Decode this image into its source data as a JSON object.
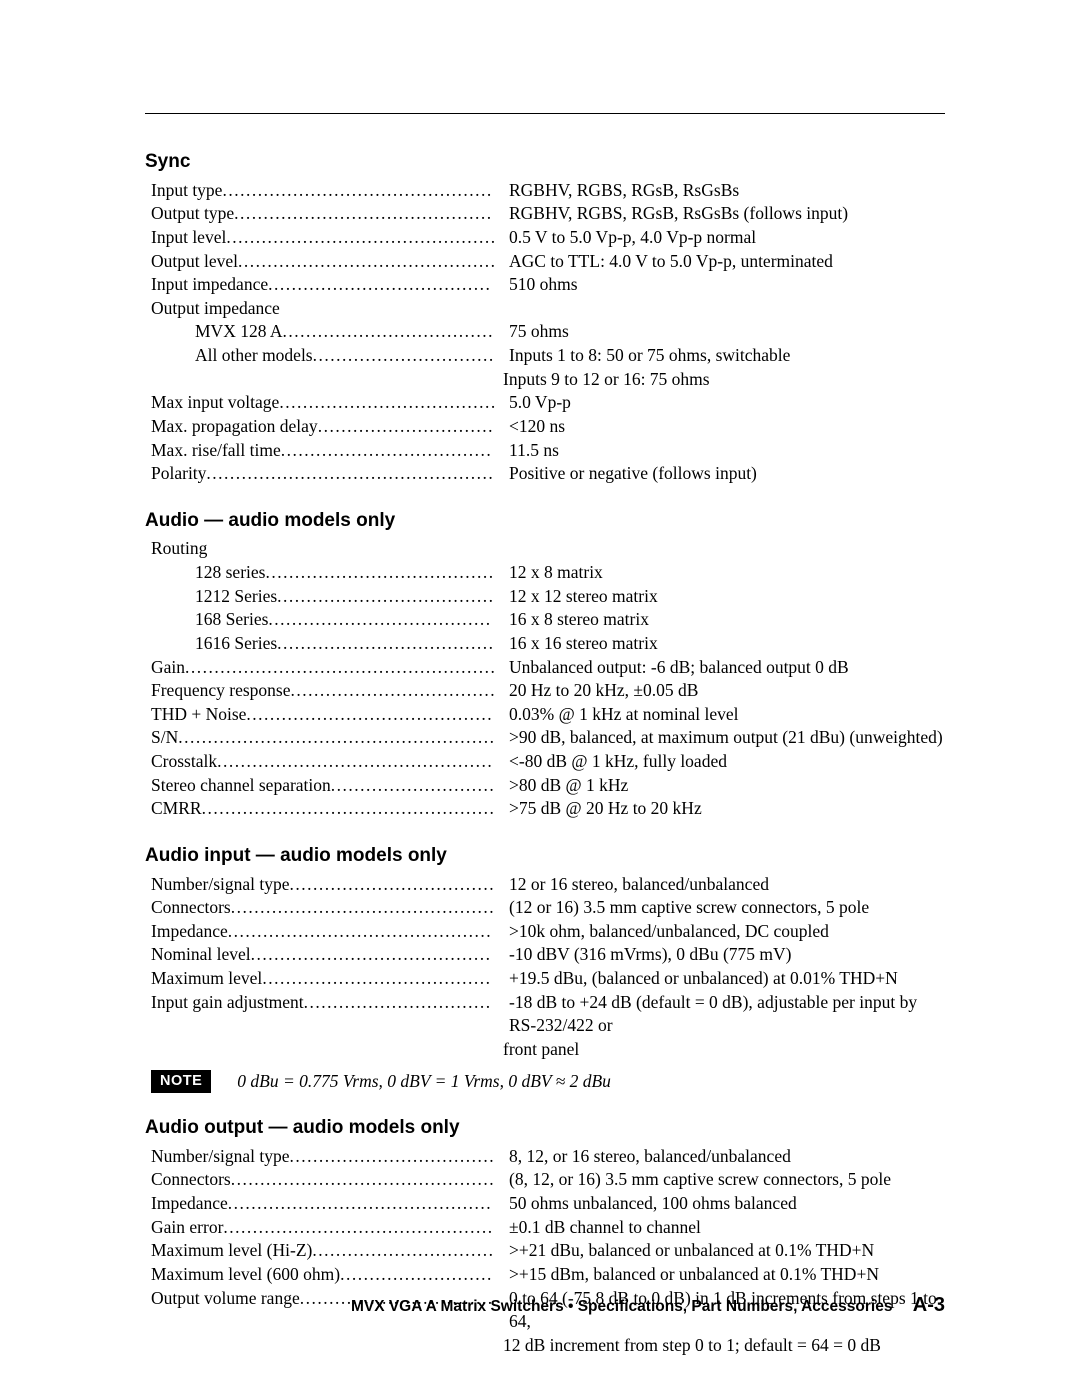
{
  "label_width_base": 352,
  "label_width_1": 308,
  "label_width_2": 268,
  "sections": [
    {
      "heading": "Sync",
      "first": true,
      "rows": [
        {
          "indent": 0,
          "label": "Input type",
          "dots": true,
          "value": "RGBHV, RGBS, RGsB, RsGsBs"
        },
        {
          "indent": 0,
          "label": "Output type",
          "dots": true,
          "value": "RGBHV, RGBS, RGsB, RsGsBs (follows input)"
        },
        {
          "indent": 0,
          "label": "Input level",
          "dots": true,
          "value": "0.5 V to 5.0 Vp-p, 4.0 Vp-p normal"
        },
        {
          "indent": 0,
          "label": "Output level",
          "dots": true,
          "value": "AGC to TTL: 4.0 V to 5.0 Vp-p, unterminated"
        },
        {
          "indent": 0,
          "label": "Input impedance",
          "dots": true,
          "value": "510 ohms"
        },
        {
          "indent": 0,
          "label": "Output impedance",
          "dots": false,
          "value": ""
        },
        {
          "indent": 1,
          "label": "MVX 128 A",
          "dots": true,
          "value": "75 ohms"
        },
        {
          "indent": 1,
          "label": "All other models",
          "dots": true,
          "value": "Inputs 1 to 8: 50 or 75 ohms, switchable"
        },
        {
          "continuation": true,
          "value": "Inputs 9 to 12 or 16: 75 ohms"
        },
        {
          "indent": 0,
          "label": "Max input voltage",
          "dots": true,
          "value": "5.0 Vp-p"
        },
        {
          "indent": 0,
          "label": "Max. propagation delay",
          "dots": true,
          "value": "<120 ns"
        },
        {
          "indent": 0,
          "label": "Max. rise/fall time",
          "dots": true,
          "value": "11.5 ns"
        },
        {
          "indent": 0,
          "label": "Polarity",
          "dots": true,
          "value": "Positive or negative (follows input)"
        }
      ]
    },
    {
      "heading": "Audio — audio models only",
      "rows": [
        {
          "indent": 0,
          "label": "Routing",
          "dots": false,
          "value": ""
        },
        {
          "indent": 1,
          "label": "128 series",
          "dots": true,
          "value": "12 x 8 matrix"
        },
        {
          "indent": 1,
          "label": "1212 Series",
          "dots": true,
          "value": "12 x 12 stereo matrix"
        },
        {
          "indent": 1,
          "label": "168 Series",
          "dots": true,
          "value": "16 x 8 stereo matrix"
        },
        {
          "indent": 1,
          "label": "1616 Series",
          "dots": true,
          "value": "16 x 16 stereo matrix"
        },
        {
          "indent": 0,
          "label": "Gain",
          "dots": true,
          "value": "Unbalanced output: -6 dB; balanced output 0 dB"
        },
        {
          "indent": 0,
          "label": "Frequency response",
          "dots": true,
          "value": "20 Hz to 20 kHz, ±0.05 dB"
        },
        {
          "indent": 0,
          "label": "THD + Noise",
          "dots": true,
          "value": "0.03% @ 1 kHz at nominal level"
        },
        {
          "indent": 0,
          "label": "S/N",
          "dots": true,
          "value": ">90 dB, balanced, at maximum output (21 dBu) (unweighted)"
        },
        {
          "indent": 0,
          "label": "Crosstalk",
          "dots": true,
          "value": "<-80 dB @ 1 kHz, fully loaded"
        },
        {
          "indent": 0,
          "label": "Stereo channel separation",
          "dots": true,
          "value": ">80 dB @ 1 kHz"
        },
        {
          "indent": 0,
          "label": "CMRR",
          "dots": true,
          "value": ">75 dB @  20 Hz to 20 kHz"
        }
      ]
    },
    {
      "heading": "Audio input — audio models only",
      "rows": [
        {
          "indent": 0,
          "label": "Number/signal type",
          "dots": true,
          "value": "12 or 16 stereo, balanced/unbalanced"
        },
        {
          "indent": 0,
          "label": "Connectors",
          "dots": true,
          "value": "(12 or 16) 3.5 mm captive screw connectors, 5 pole"
        },
        {
          "indent": 0,
          "label": "Impedance",
          "dots": true,
          "value": ">10k ohm, balanced/unbalanced, DC coupled"
        },
        {
          "indent": 0,
          "label": "Nominal level",
          "dots": true,
          "value": "-10 dBV (316 mVrms), 0 dBu (775 mV)"
        },
        {
          "indent": 0,
          "label": "Maximum level",
          "dots": true,
          "value": "+19.5 dBu, (balanced or unbalanced) at 0.01% THD+N"
        },
        {
          "indent": 0,
          "label": "Input gain adjustment",
          "dots": true,
          "value": "-18 dB to +24 dB (default = 0 dB), adjustable per input by RS-232/422 or"
        },
        {
          "continuation": true,
          "value": "front panel"
        }
      ],
      "note": "0 dBu = 0.775 Vrms, 0 dBV = 1 Vrms, 0 dBV ≈ 2 dBu"
    },
    {
      "heading": "Audio output — audio models only",
      "rows": [
        {
          "indent": 0,
          "label": "Number/signal type",
          "dots": true,
          "value": "8, 12, or 16 stereo, balanced/unbalanced"
        },
        {
          "indent": 0,
          "label": "Connectors",
          "dots": true,
          "value": "(8, 12, or 16) 3.5 mm captive screw connectors, 5 pole"
        },
        {
          "indent": 0,
          "label": "Impedance",
          "dots": true,
          "value": "50 ohms unbalanced, 100 ohms balanced"
        },
        {
          "indent": 0,
          "label": "Gain error",
          "dots": true,
          "value": "±0.1 dB channel to channel"
        },
        {
          "indent": 0,
          "label": "Maximum level (Hi-Z)",
          "dots": true,
          "value": ">+21 dBu, balanced or unbalanced at 0.1% THD+N"
        },
        {
          "indent": 0,
          "label": "Maximum level (600 ohm)",
          "dots": true,
          "value": ">+15 dBm, balanced or unbalanced at 0.1% THD+N"
        },
        {
          "indent": 0,
          "label": "Output volume range",
          "dots": true,
          "value": "0 to 64 (-75.8 dB to 0 dB) in 1 dB increments from steps 1 to 64,"
        },
        {
          "continuation": true,
          "value": "12 dB increment from step 0 to 1; default = 64 = 0 dB"
        }
      ]
    }
  ],
  "note_label": "NOTE",
  "footer_text": "MVX VGA A Matrix Switchers • Specifications, Part Numbers, Accessories",
  "page_number": "A-3"
}
